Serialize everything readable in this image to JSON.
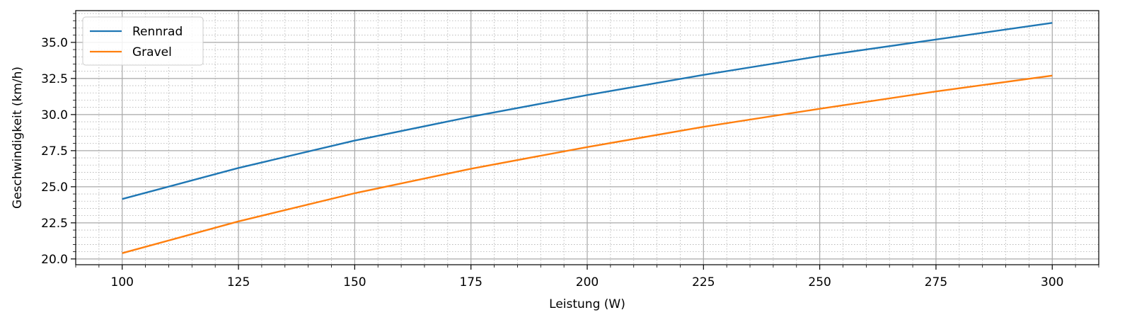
{
  "chart_data": {
    "type": "line",
    "xlabel": "Leistung (W)",
    "ylabel": "Geschwindigkeit (km/h)",
    "xlim": [
      90,
      310
    ],
    "ylim": [
      19.6,
      37.2
    ],
    "x_ticks": [
      100,
      125,
      150,
      175,
      200,
      225,
      250,
      275,
      300
    ],
    "y_ticks": [
      20.0,
      22.5,
      25.0,
      27.5,
      30.0,
      32.5,
      35.0
    ],
    "x_tick_labels": [
      "100",
      "125",
      "150",
      "175",
      "200",
      "225",
      "250",
      "275",
      "300"
    ],
    "y_tick_labels": [
      "20.0",
      "22.5",
      "25.0",
      "27.5",
      "30.0",
      "32.5",
      "35.0"
    ],
    "x_minor_step": 5,
    "y_minor_step": 0.5,
    "grid": true,
    "legend_position": "top-left",
    "x": [
      100,
      125,
      150,
      175,
      200,
      225,
      250,
      275,
      300
    ],
    "series": [
      {
        "name": "Rennrad",
        "color": "#1f77b4",
        "values": [
          24.15,
          26.3,
          28.2,
          29.85,
          31.35,
          32.75,
          34.05,
          35.2,
          36.35
        ]
      },
      {
        "name": "Gravel",
        "color": "#ff7f0e",
        "values": [
          20.4,
          22.6,
          24.55,
          26.25,
          27.75,
          29.15,
          30.4,
          31.6,
          32.7
        ]
      }
    ]
  }
}
